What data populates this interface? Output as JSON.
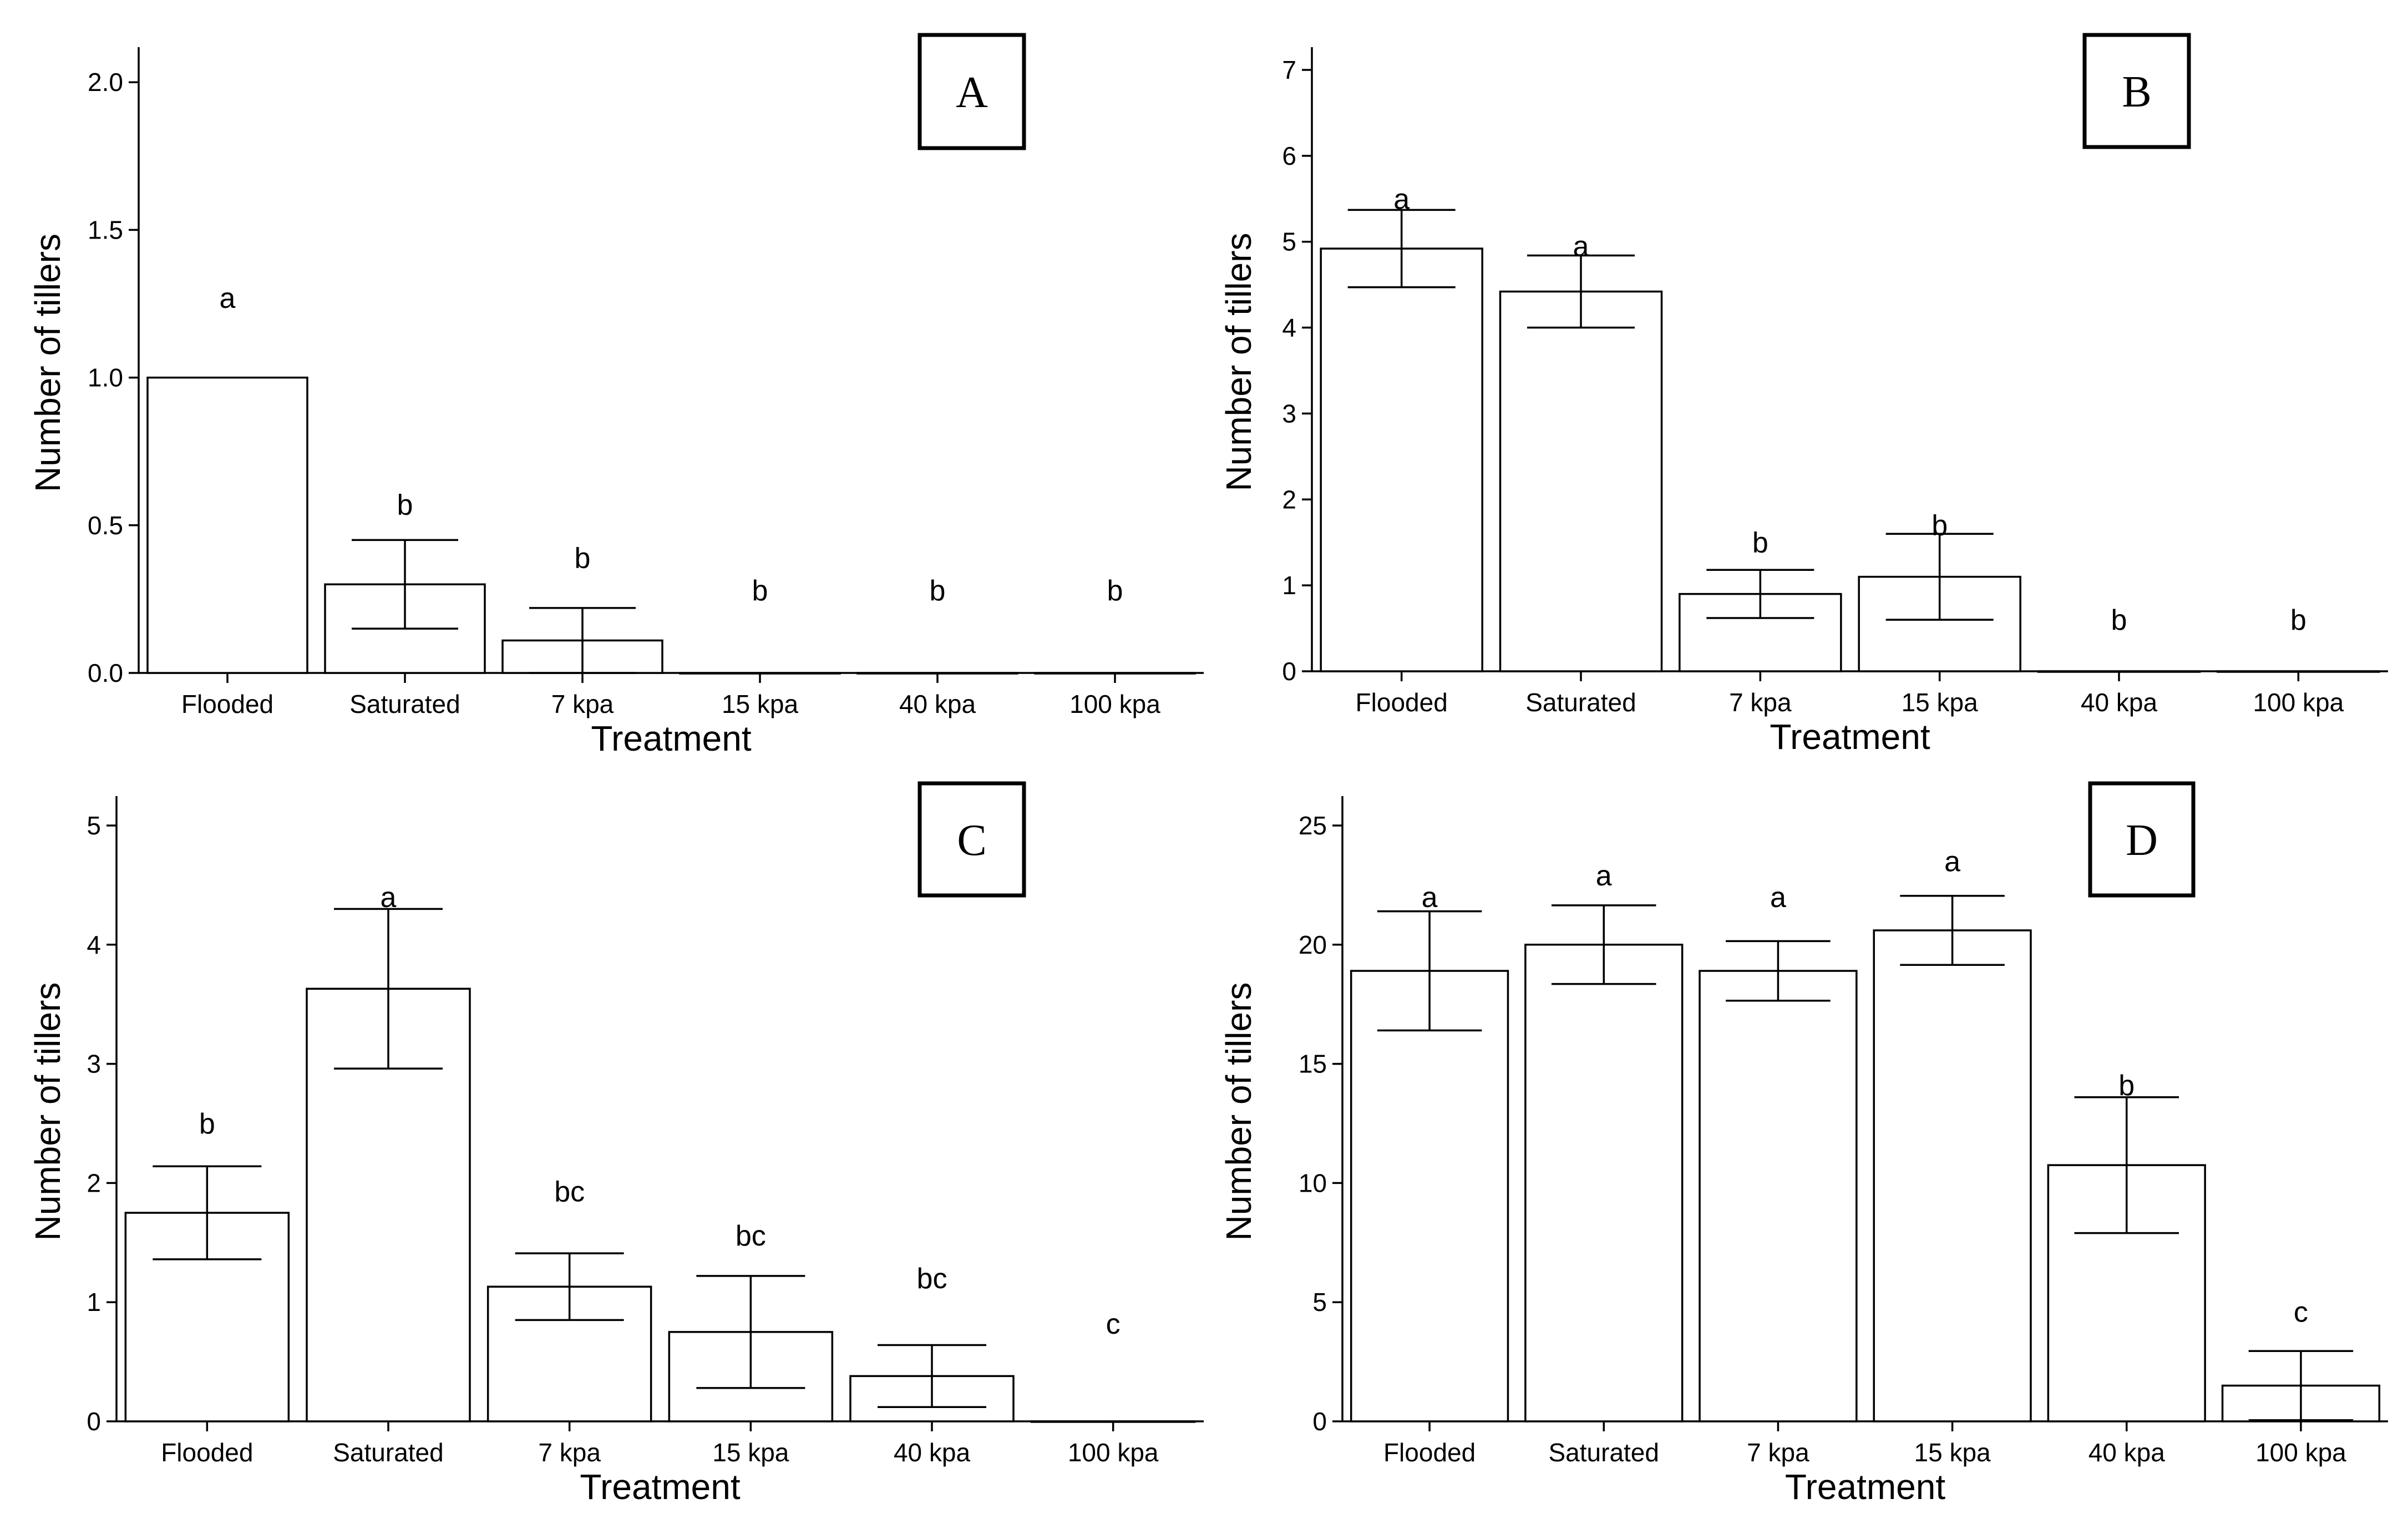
{
  "chart_data": [
    {
      "panel": "A",
      "type": "bar",
      "categories": [
        "Flooded",
        "Saturated",
        "7 kpa",
        "15 kpa",
        "40 kpa",
        "100 kpa"
      ],
      "values": [
        1.0,
        0.3,
        0.11,
        0.0,
        0.0,
        0.0
      ],
      "errors": [
        0.0,
        0.15,
        0.11,
        0.0,
        0.0,
        0.0
      ],
      "letters": [
        "a",
        "b",
        "b",
        "b",
        "b",
        "b"
      ],
      "letter_y": [
        1.27,
        0.57,
        0.39,
        0.28,
        0.28,
        0.28
      ],
      "xlabel": "Treatment",
      "ylabel": "Number of tillers",
      "ylim": [
        0,
        2.1
      ],
      "yticks": [
        0.0,
        0.5,
        1.0,
        1.5,
        2.0
      ],
      "ytick_labels": [
        "0.0",
        "0.5",
        "1.0",
        "1.5",
        "2.0"
      ],
      "grid": false
    },
    {
      "panel": "B",
      "type": "bar",
      "categories": [
        "Flooded",
        "Saturated",
        "7 kpa",
        "15 kpa",
        "40 kpa",
        "100 kpa"
      ],
      "values": [
        4.92,
        4.42,
        0.9,
        1.1,
        0.0,
        0.0
      ],
      "errors": [
        0.45,
        0.42,
        0.28,
        0.5,
        0.0,
        0.0
      ],
      "letters": [
        "a",
        "a",
        "b",
        "b",
        "b",
        "b"
      ],
      "letter_y": [
        5.5,
        4.95,
        1.5,
        1.7,
        0.6,
        0.6
      ],
      "xlabel": "Treatment",
      "ylabel": "Number of tillers",
      "ylim": [
        0,
        7.2
      ],
      "yticks": [
        0,
        1,
        2,
        3,
        4,
        5,
        6,
        7
      ],
      "ytick_labels": [
        "0",
        "1",
        "2",
        "3",
        "4",
        "5",
        "6",
        "7"
      ],
      "grid": false
    },
    {
      "panel": "C",
      "type": "bar",
      "categories": [
        "Flooded",
        "Saturated",
        "7 kpa",
        "15 kpa",
        "40 kpa",
        "100 kpa"
      ],
      "values": [
        1.75,
        3.63,
        1.13,
        0.75,
        0.38,
        0.0
      ],
      "errors": [
        0.39,
        0.67,
        0.28,
        0.47,
        0.26,
        0.0
      ],
      "letters": [
        "b",
        "a",
        "bc",
        "bc",
        "bc",
        "c"
      ],
      "letter_y": [
        2.5,
        4.4,
        1.93,
        1.56,
        1.2,
        0.82
      ],
      "xlabel": "Treatment",
      "ylabel": "Number of tillers",
      "ylim": [
        0,
        5.2
      ],
      "yticks": [
        0,
        1,
        2,
        3,
        4,
        5
      ],
      "ytick_labels": [
        "0",
        "1",
        "2",
        "3",
        "4",
        "5"
      ],
      "grid": false
    },
    {
      "panel": "D",
      "type": "bar",
      "categories": [
        "Flooded",
        "Saturated",
        "7 kpa",
        "15 kpa",
        "40 kpa",
        "100 kpa"
      ],
      "values": [
        18.9,
        20.0,
        18.9,
        20.6,
        10.75,
        1.5
      ],
      "errors": [
        2.5,
        1.65,
        1.25,
        1.45,
        2.85,
        1.45
      ],
      "letters": [
        "a",
        "a",
        "a",
        "a",
        "b",
        "c"
      ],
      "letter_y": [
        22.0,
        22.9,
        22.0,
        23.5,
        14.1,
        4.6
      ],
      "xlabel": "Treatment",
      "ylabel": "Number of tillers",
      "ylim": [
        0,
        26
      ],
      "yticks": [
        0,
        5,
        10,
        15,
        20,
        25
      ],
      "ytick_labels": [
        "0",
        "5",
        "10",
        "15",
        "20",
        "25"
      ],
      "grid": false
    }
  ]
}
